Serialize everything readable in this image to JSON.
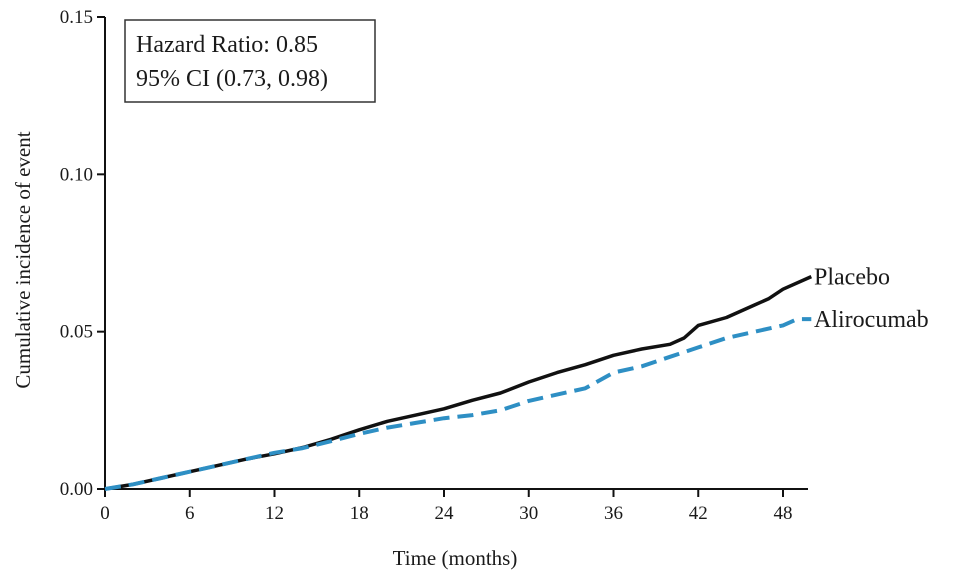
{
  "chart_data": {
    "type": "line",
    "xlabel": "Time (months)",
    "ylabel": "Cumulative incidence of event",
    "xlim": [
      0,
      50
    ],
    "ylim": [
      0,
      0.15
    ],
    "x_ticks": [
      0,
      6,
      12,
      18,
      24,
      30,
      36,
      42,
      48
    ],
    "x_tick_labels": [
      "0",
      "6",
      "12",
      "18",
      "24",
      "30",
      "36",
      "42",
      "48"
    ],
    "y_ticks": [
      0.0,
      0.05,
      0.1,
      0.15
    ],
    "y_tick_labels": [
      "0.00",
      "0.05",
      "0.10",
      "0.15"
    ],
    "grid": false,
    "annotation": {
      "line1": "Hazard Ratio: 0.85",
      "line2": "95% CI (0.73, 0.98)"
    },
    "series": [
      {
        "name": "Placebo",
        "color": "#111111",
        "style": "solid",
        "x": [
          0,
          2,
          4,
          6,
          8,
          10,
          12,
          14,
          16,
          18,
          20,
          22,
          24,
          26,
          28,
          30,
          32,
          34,
          36,
          38,
          40,
          41,
          42,
          44,
          46,
          47,
          48,
          50
        ],
        "y": [
          0,
          0.0015,
          0.0035,
          0.0055,
          0.0075,
          0.0095,
          0.0112,
          0.0132,
          0.0158,
          0.0188,
          0.0215,
          0.0235,
          0.0255,
          0.0282,
          0.0305,
          0.034,
          0.037,
          0.0395,
          0.0425,
          0.0445,
          0.046,
          0.048,
          0.052,
          0.0545,
          0.0585,
          0.0605,
          0.0635,
          0.0675
        ]
      },
      {
        "name": "Alirocumab",
        "color": "#2e8fc4",
        "style": "dashed",
        "x": [
          0,
          2,
          4,
          6,
          8,
          10,
          12,
          14,
          16,
          18,
          20,
          22,
          24,
          26,
          28,
          30,
          32,
          34,
          36,
          38,
          40,
          42,
          44,
          46,
          48,
          49,
          50
        ],
        "y": [
          0,
          0.0015,
          0.0035,
          0.0055,
          0.0075,
          0.0095,
          0.0115,
          0.013,
          0.0152,
          0.0175,
          0.0195,
          0.021,
          0.0225,
          0.0235,
          0.025,
          0.028,
          0.03,
          0.032,
          0.037,
          0.039,
          0.042,
          0.045,
          0.048,
          0.05,
          0.052,
          0.054,
          0.054
        ]
      }
    ]
  }
}
